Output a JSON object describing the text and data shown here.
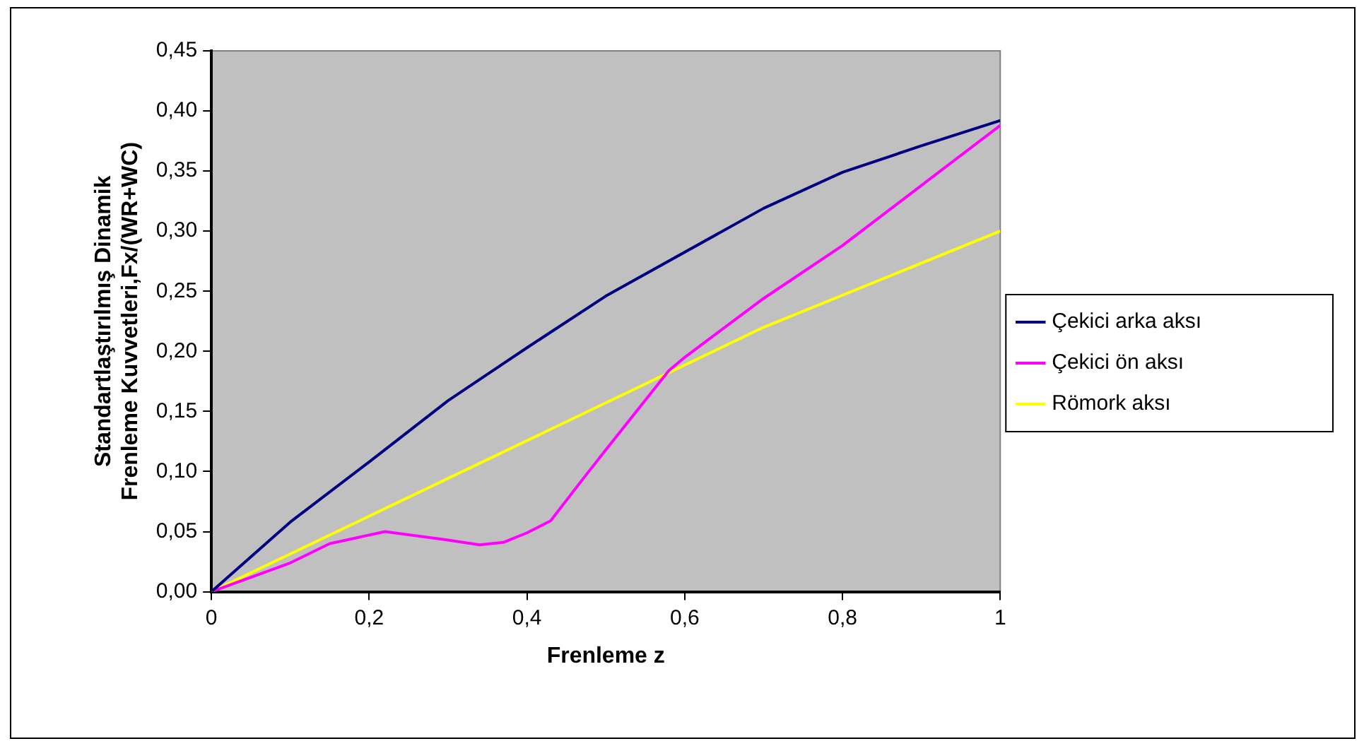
{
  "chart_data": {
    "type": "line",
    "xlabel": "Frenleme z",
    "ylabel": "Standartlaştırılmış Dinamik\nFrenleme Kuvvetleri,Fx/(WR+WC)",
    "xlim": [
      0,
      1
    ],
    "xticks": [
      0,
      {
        "value": 0.2,
        "label": "0,2"
      },
      {
        "value": 0.4,
        "label": "0,4"
      },
      {
        "value": 0.6,
        "label": "0,6"
      },
      {
        "value": 0.8,
        "label": "0,8"
      },
      1
    ],
    "ylim": [
      0,
      0.45
    ],
    "yticks": [
      {
        "value": 0,
        "label": "0,00"
      },
      {
        "value": 0.05,
        "label": "0,05"
      },
      {
        "value": 0.1,
        "label": "0,10"
      },
      {
        "value": 0.15,
        "label": "0,15"
      },
      {
        "value": 0.2,
        "label": "0,20"
      },
      {
        "value": 0.25,
        "label": "0,25"
      },
      {
        "value": 0.3,
        "label": "0,30"
      },
      {
        "value": 0.35,
        "label": "0,35"
      },
      {
        "value": 0.4,
        "label": "0,40"
      },
      {
        "value": 0.45,
        "label": "0,45"
      }
    ],
    "grid": false,
    "legend": "right",
    "marker": "none",
    "series": [
      {
        "name": "Çekici arka aksı",
        "color": "#000080",
        "x": [
          0,
          0.1,
          0.2,
          0.3,
          0.4,
          0.5,
          0.7,
          0.8,
          0.9,
          1
        ],
        "values": [
          0,
          0.058,
          0.108,
          0.159,
          0.203,
          0.246,
          0.319,
          0.349,
          0.371,
          0.392
        ]
      },
      {
        "name": "Çekici ön aksı",
        "color": "#ff00ff",
        "x": [
          0,
          0.1,
          0.15,
          0.22,
          0.3,
          0.34,
          0.37,
          0.4,
          0.43,
          0.47,
          0.5,
          0.58,
          0.6,
          0.7,
          0.8,
          0.9,
          1
        ],
        "values": [
          0,
          0.024,
          0.04,
          0.05,
          0.043,
          0.039,
          0.041,
          0.049,
          0.059,
          0.093,
          0.118,
          0.184,
          0.195,
          0.244,
          0.288,
          0.338,
          0.388
        ]
      },
      {
        "name": "Römork aksı",
        "color": "#ffff00",
        "x": [
          0,
          0.7,
          1
        ],
        "values": [
          0,
          0.22,
          0.3
        ]
      }
    ]
  }
}
